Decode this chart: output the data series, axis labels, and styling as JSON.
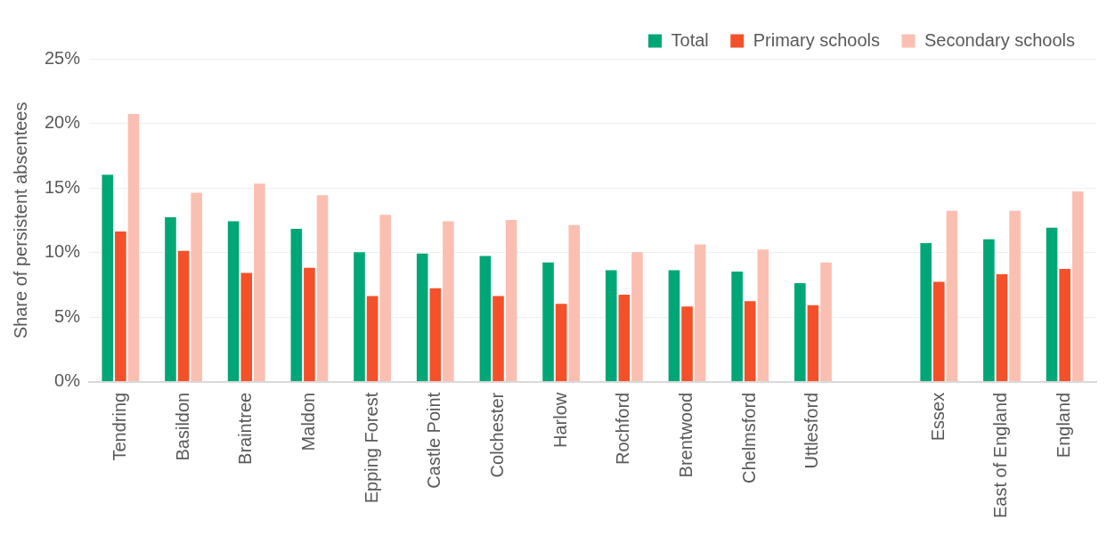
{
  "chart_data": {
    "type": "bar",
    "ylabel": "Share of persistent absentees",
    "categories": [
      "Tendring",
      "Basildon",
      "Braintree",
      "Maldon",
      "Epping Forest",
      "Castle Point",
      "Colchester",
      "Harlow",
      "Rochford",
      "Brentwood",
      "Chelmsford",
      "Uttlesford",
      null,
      "Essex",
      "East of England",
      "England"
    ],
    "series": [
      {
        "name": "Total",
        "color": "#00a776",
        "values": [
          16.1,
          12.8,
          12.5,
          11.9,
          10.1,
          10.0,
          9.8,
          9.3,
          8.7,
          8.7,
          8.6,
          7.7,
          null,
          10.8,
          11.1,
          12.0
        ]
      },
      {
        "name": "Primary schools",
        "color": "#f4502a",
        "values": [
          11.7,
          10.2,
          8.5,
          8.9,
          6.7,
          7.3,
          6.7,
          6.1,
          6.8,
          5.9,
          6.3,
          6.0,
          null,
          7.8,
          8.4,
          8.8
        ]
      },
      {
        "name": "Secondary schools",
        "color": "#fbbfb1",
        "values": [
          20.8,
          14.7,
          15.4,
          14.5,
          13.0,
          12.5,
          12.6,
          12.2,
          10.1,
          10.7,
          10.3,
          9.3,
          null,
          13.3,
          13.3,
          14.8
        ]
      }
    ],
    "ylim": [
      0,
      25
    ],
    "yticks": [
      {
        "value": 0,
        "label": "0%"
      },
      {
        "value": 5,
        "label": "5%"
      },
      {
        "value": 10,
        "label": "10%"
      },
      {
        "value": 15,
        "label": "15%"
      },
      {
        "value": 20,
        "label": "20%"
      },
      {
        "value": 25,
        "label": "25%"
      }
    ],
    "grid": "y",
    "legend": "top right"
  }
}
